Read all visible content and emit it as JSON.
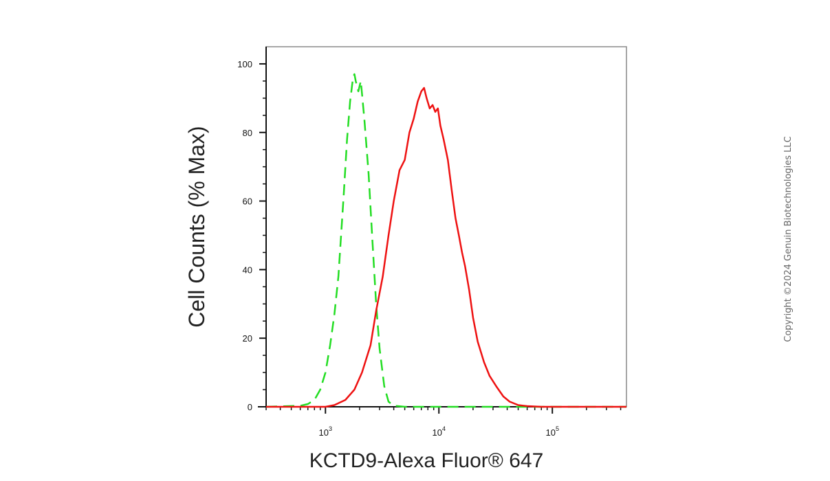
{
  "chart_data": {
    "type": "line",
    "xlabel": "KCTD9-Alexa Fluor® 647",
    "ylabel": "Cell Counts (% Max)",
    "x_scale": "log",
    "xlim": [
      300,
      450000
    ],
    "ylim": [
      0,
      105
    ],
    "yticks": [
      0,
      20,
      40,
      60,
      80,
      100
    ],
    "xticks": [
      {
        "base": "10",
        "exp": "3",
        "value": 1000
      },
      {
        "base": "10",
        "exp": "4",
        "value": 10000
      },
      {
        "base": "10",
        "exp": "5",
        "value": 100000
      }
    ],
    "grid": false,
    "legend": "none",
    "series": [
      {
        "style": "dashed",
        "color": "#22dd22",
        "x": [
          300,
          600,
          700,
          800,
          900,
          1000,
          1100,
          1200,
          1300,
          1450,
          1550,
          1650,
          1750,
          1800,
          1850,
          1950,
          2050,
          2200,
          2400,
          2600,
          2800,
          3000,
          3300,
          3600,
          4000,
          5000,
          10000,
          100000,
          450000
        ],
        "y": [
          0,
          0.3,
          0.8,
          2,
          5,
          10,
          18,
          27,
          38,
          62,
          78,
          89,
          96,
          97,
          95,
          92,
          95,
          84,
          68,
          48,
          30,
          17,
          6,
          1.5,
          0.3,
          0,
          0,
          0,
          0
        ]
      },
      {
        "style": "solid",
        "color": "#ee1111",
        "x": [
          300,
          1000,
          1200,
          1500,
          1800,
          2100,
          2500,
          2800,
          3200,
          3600,
          4000,
          4500,
          5000,
          5500,
          6000,
          6500,
          7000,
          7400,
          7800,
          8300,
          8800,
          9300,
          9800,
          10300,
          11000,
          12000,
          13000,
          14000,
          15000,
          16000,
          17000,
          18500,
          20000,
          22000,
          25000,
          28000,
          32000,
          37000,
          42000,
          50000,
          60000,
          80000,
          120000,
          450000
        ],
        "y": [
          0,
          0,
          0.5,
          2,
          5,
          10,
          18,
          28,
          38,
          50,
          60,
          69,
          72,
          80,
          84,
          89,
          92,
          93,
          90,
          87,
          88,
          86,
          87,
          82,
          78,
          72,
          63,
          55,
          50,
          45,
          41,
          34,
          26,
          19,
          13,
          9,
          6,
          3,
          1.5,
          0.5,
          0.2,
          0,
          0,
          0
        ]
      }
    ]
  },
  "copyright": "Copyright ©2024 Genuin Biotechnologies LLC"
}
